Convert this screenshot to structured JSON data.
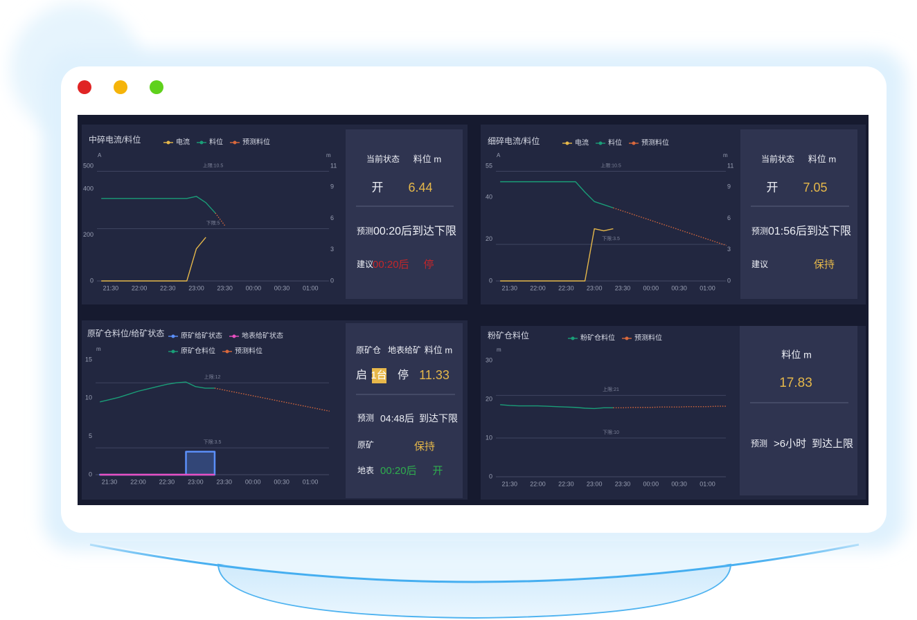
{
  "chart_data": [
    {
      "type": "line",
      "title": "中碎电流/料位",
      "legend": "top",
      "categories": [
        null,
        "21:30",
        null,
        null,
        "22:00",
        null,
        null,
        "22:30",
        null,
        null,
        "23:00",
        null,
        null,
        "23:30",
        null,
        null,
        "00:00",
        null,
        null,
        "00:30",
        null,
        null,
        "01:00",
        null,
        null
      ],
      "y_unit": "A",
      "ylim": [
        0,
        500
      ],
      "yticks": [
        0,
        200,
        400,
        500
      ],
      "y2_unit": "m",
      "y2lim": [
        0,
        11
      ],
      "y2ticks": [
        0,
        3,
        6,
        9,
        11
      ],
      "ref_lines": [
        {
          "value": 10.5,
          "label": "上限:10.5",
          "axis": "y2"
        },
        {
          "value": 5,
          "label": "下限:5",
          "axis": "y2"
        }
      ],
      "series": [
        {
          "name": "电流",
          "color": "#e6b84a",
          "values": [
            0,
            0,
            0,
            0,
            0,
            0,
            0,
            0,
            0,
            0,
            140,
            190,
            null,
            null,
            null,
            null,
            null,
            null,
            null,
            null,
            null,
            null,
            null,
            null,
            null
          ]
        },
        {
          "name": "料位",
          "color": "#1a9e78",
          "axis": "y2",
          "values": [
            7.9,
            7.9,
            7.9,
            7.9,
            7.9,
            7.9,
            7.9,
            7.9,
            7.9,
            7.9,
            8.1,
            7.5,
            6.5,
            null,
            null,
            null,
            null,
            null,
            null,
            null,
            null,
            null,
            null,
            null,
            null
          ]
        },
        {
          "name": "预测料位",
          "color": "#d8683c",
          "axis": "y2",
          "dashed": true,
          "values": [
            null,
            null,
            null,
            null,
            null,
            null,
            null,
            null,
            null,
            null,
            null,
            null,
            6.5,
            5.3,
            null,
            null,
            null,
            null,
            null,
            null,
            null,
            null,
            null,
            null,
            null
          ]
        }
      ]
    },
    {
      "type": "line",
      "title": "细碎电流/料位",
      "legend": "top",
      "categories": [
        null,
        "21:30",
        null,
        null,
        "22:00",
        null,
        null,
        "22:30",
        null,
        null,
        "23:00",
        null,
        null,
        "23:30",
        null,
        null,
        "00:00",
        null,
        null,
        "00:30",
        null,
        null,
        "01:00",
        null,
        null
      ],
      "y_unit": "A",
      "ylim": [
        0,
        55
      ],
      "yticks": [
        0,
        20,
        40,
        55
      ],
      "y2_unit": "m",
      "y2lim": [
        0,
        11
      ],
      "y2ticks": [
        0,
        3,
        6,
        9,
        11
      ],
      "ref_lines": [
        {
          "value": 10.5,
          "label": "上限:10.5",
          "axis": "y2"
        },
        {
          "value": 3.5,
          "label": "下限:3.5",
          "axis": "y2"
        }
      ],
      "series": [
        {
          "name": "电流",
          "color": "#e6b84a",
          "values": [
            0,
            0,
            0,
            0,
            0,
            0,
            0,
            0,
            0,
            0,
            25,
            24,
            25,
            null,
            null,
            null,
            null,
            null,
            null,
            null,
            null,
            null,
            null,
            null,
            null
          ]
        },
        {
          "name": "料位",
          "color": "#1a9e78",
          "axis": "y2",
          "values": [
            9.5,
            9.5,
            9.5,
            9.5,
            9.5,
            9.5,
            9.5,
            9.5,
            9.5,
            8.5,
            7.6,
            7.3,
            7.0,
            null,
            null,
            null,
            null,
            null,
            null,
            null,
            null,
            null,
            null,
            null,
            null
          ]
        },
        {
          "name": "预测料位",
          "color": "#d8683c",
          "axis": "y2",
          "dashed": true,
          "values": [
            null,
            null,
            null,
            null,
            null,
            null,
            null,
            null,
            null,
            null,
            null,
            null,
            7.0,
            6.7,
            6.4,
            6.1,
            5.8,
            5.5,
            5.2,
            4.9,
            4.6,
            4.3,
            4.0,
            3.7,
            3.4
          ]
        }
      ]
    },
    {
      "type": "line",
      "title": "原矿仓料位/给矿状态",
      "legend": "top",
      "categories": [
        null,
        "21:30",
        null,
        null,
        "22:00",
        null,
        null,
        "22:30",
        null,
        null,
        "23:00",
        null,
        null,
        "23:30",
        null,
        null,
        "00:00",
        null,
        null,
        "00:30",
        null,
        null,
        "01:00",
        null,
        null
      ],
      "y_unit": "m",
      "ylim": [
        0,
        15
      ],
      "yticks": [
        0,
        5,
        10,
        15
      ],
      "ref_lines": [
        {
          "value": 12,
          "label": "上限:12"
        },
        {
          "value": 3.5,
          "label": "下限:3.5"
        }
      ],
      "series": [
        {
          "name": "原矿给矿状态",
          "color": "#5b8ff9",
          "step": true,
          "fill": true,
          "values": [
            0,
            0,
            0,
            0,
            0,
            0,
            0,
            0,
            0,
            3,
            3,
            3,
            0,
            null,
            null,
            null,
            null,
            null,
            null,
            null,
            null,
            null,
            null,
            null,
            null
          ]
        },
        {
          "name": "地表给矿状态",
          "color": "#e84fc1",
          "step": true,
          "values": [
            0,
            0,
            0,
            0,
            0,
            0,
            0,
            0,
            0,
            0,
            0,
            0,
            0,
            null,
            null,
            null,
            null,
            null,
            null,
            null,
            null,
            null,
            null,
            null,
            null
          ]
        },
        {
          "name": "原矿仓料位",
          "color": "#1a9e78",
          "values": [
            9.5,
            9.8,
            10.1,
            10.5,
            10.9,
            11.2,
            11.5,
            11.8,
            12.0,
            12.1,
            11.5,
            11.3,
            11.3,
            null,
            null,
            null,
            null,
            null,
            null,
            null,
            null,
            null,
            null,
            null,
            null
          ]
        },
        {
          "name": "预测料位",
          "color": "#d8683c",
          "dashed": true,
          "values": [
            null,
            null,
            null,
            null,
            null,
            null,
            null,
            null,
            null,
            null,
            null,
            null,
            11.3,
            11.05,
            10.8,
            10.55,
            10.3,
            10.05,
            9.8,
            9.55,
            9.3,
            9.05,
            8.8,
            8.55,
            8.3
          ]
        }
      ]
    },
    {
      "type": "line",
      "title": "粉矿仓料位",
      "legend": "top",
      "categories": [
        null,
        "21:30",
        null,
        null,
        "22:00",
        null,
        null,
        "22:30",
        null,
        null,
        "23:00",
        null,
        null,
        "23:30",
        null,
        null,
        "00:00",
        null,
        null,
        "00:30",
        null,
        null,
        "01:00",
        null,
        null
      ],
      "y_unit": "m",
      "ylim": [
        0,
        30
      ],
      "yticks": [
        0,
        10,
        20,
        30
      ],
      "ref_lines": [
        {
          "value": 21,
          "label": "上限:21"
        },
        {
          "value": 10,
          "label": "下限:10"
        }
      ],
      "series": [
        {
          "name": "粉矿仓料位",
          "color": "#1a9e78",
          "values": [
            18.6,
            18.4,
            18.3,
            18.3,
            18.3,
            18.2,
            18.1,
            18.0,
            17.9,
            17.7,
            17.6,
            17.8,
            17.8,
            null,
            null,
            null,
            null,
            null,
            null,
            null,
            null,
            null,
            null,
            null,
            null
          ]
        },
        {
          "name": "预测料位",
          "color": "#d8683c",
          "dashed": true,
          "values": [
            null,
            null,
            null,
            null,
            null,
            null,
            null,
            null,
            null,
            null,
            null,
            null,
            17.8,
            17.8,
            17.9,
            17.9,
            17.9,
            18.0,
            18.0,
            18.0,
            18.1,
            18.1,
            18.1,
            18.2,
            18.2
          ]
        }
      ]
    }
  ],
  "panels": [
    {
      "status_label": "当前状态",
      "level_label": "料位 m",
      "state": "开",
      "level": 6.44,
      "forecast_label": "预测",
      "forecast": "00:20后到达下限",
      "advice_label": "建议",
      "advice_time": "00:20后",
      "advice": "停"
    },
    {
      "status_label": "当前状态",
      "level_label": "料位 m",
      "state": "开",
      "level": 7.05,
      "forecast_label": "预测",
      "forecast": "01:56后到达下限",
      "advice_label": "建议",
      "advice": "保持"
    },
    {
      "bin_label": "原矿仓",
      "surface_label": "地表给矿",
      "level_label": "料位 m",
      "start_label": "启",
      "running": "1台",
      "stop_label": "停",
      "level": 11.33,
      "forecast_label": "预测",
      "forecast_time": "04:48后",
      "forecast": "到达下限",
      "ore_label": "原矿",
      "ore_advice": "保持",
      "surface_short": "地表",
      "surface_time": "00:20后",
      "surface_advice": "开"
    },
    {
      "level_label": "料位 m",
      "level": 17.83,
      "forecast_label": "预测",
      "forecast_time": ">6小时",
      "forecast": "到达上限"
    }
  ]
}
